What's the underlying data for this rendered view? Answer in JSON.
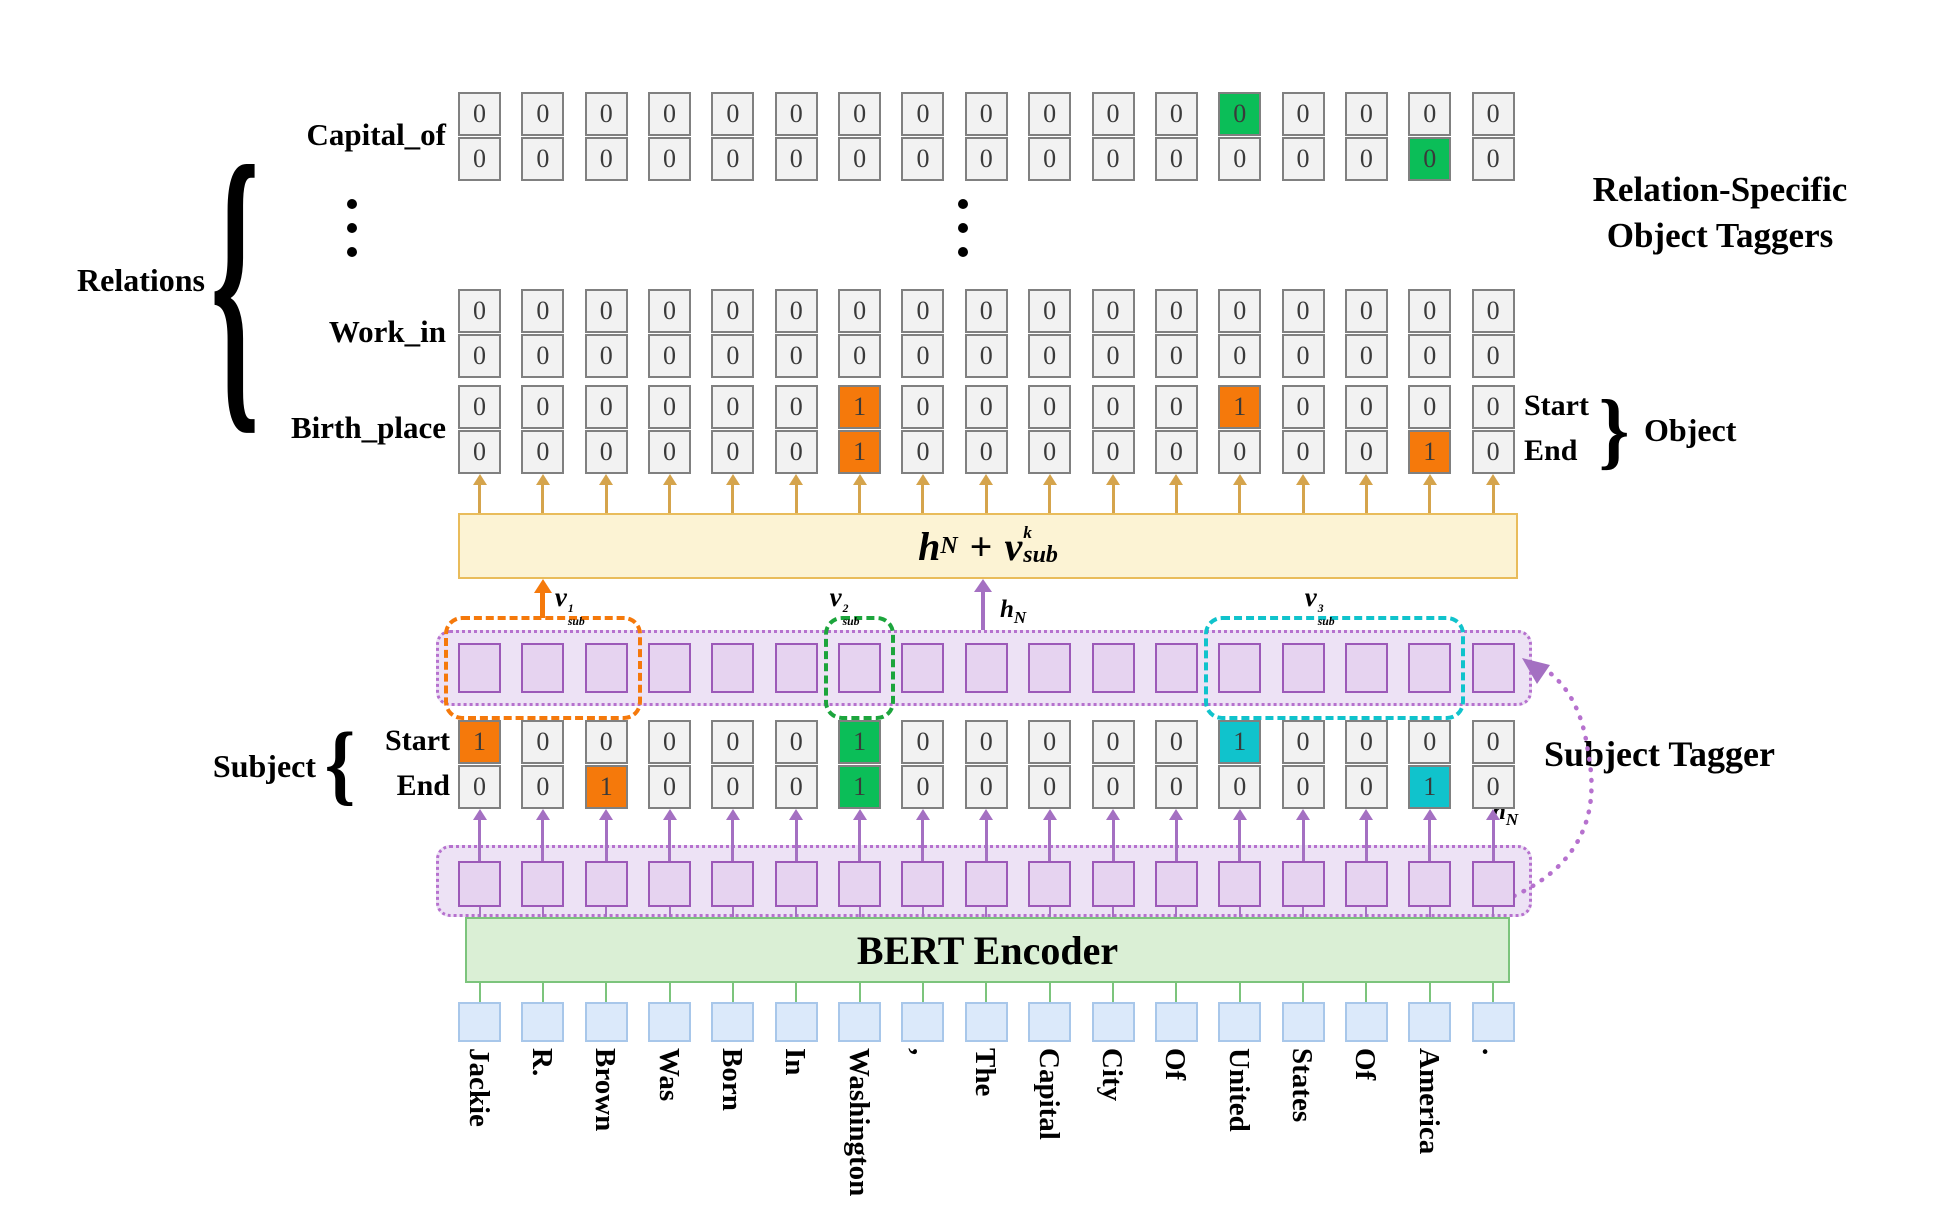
{
  "colors": {
    "orange": "#F5790B",
    "green": "#0BBE58",
    "cyan": "#10C3CC",
    "gold": "#D5A44C",
    "purple": "#A470C2",
    "purple_dark": "#9C59B8",
    "container_border": "#B671CE",
    "green_dash": "#1CA53C",
    "yellow_fill": "#FCF3D4",
    "yellow_border": "#E9BC5B",
    "bert_fill": "#DAEFD5",
    "bert_border": "#7CC47C",
    "token_fill": "#DBE9FA",
    "token_border": "#A8C7EA",
    "cell_fill": "#F2F2F2",
    "cell_border": "#808080"
  },
  "labels": {
    "relations": "Relations",
    "title_line1": "Relation-Specific",
    "title_line2": "Object Taggers",
    "subject_tagger": "Subject Tagger",
    "subject": "Subject",
    "start": "Start",
    "end": "End",
    "object": "Object",
    "bert": "BERT Encoder",
    "brace_open": "{",
    "brace_close": "}"
  },
  "formula": {
    "lhs_base": "h",
    "lhs_sub": "N",
    "op": "+",
    "rhs_base": "v",
    "rhs_sup": "k",
    "rhs_sub": "sub"
  },
  "hn": {
    "base": "h",
    "sub": "N"
  },
  "tokens": [
    "Jackie",
    "R.",
    "Brown",
    "Was",
    "Born",
    "In",
    "Washington",
    ",",
    "The",
    "Capital",
    "City",
    "Of",
    "United",
    "States",
    "Of",
    "America",
    "."
  ],
  "relation_rows": [
    {
      "label": "Capital_of",
      "start": [
        "0",
        "0",
        "0",
        "0",
        "0",
        "0",
        "0",
        "0",
        "0",
        "0",
        "0",
        "0",
        "0",
        "0",
        "0",
        "0",
        "0"
      ],
      "end": [
        "0",
        "0",
        "0",
        "0",
        "0",
        "0",
        "0",
        "0",
        "0",
        "0",
        "0",
        "0",
        "0",
        "0",
        "0",
        "0",
        "0"
      ],
      "start_hl": {
        "12": "green"
      },
      "end_hl": {
        "15": "green"
      }
    },
    {
      "label": "Work_in",
      "start": [
        "0",
        "0",
        "0",
        "0",
        "0",
        "0",
        "0",
        "0",
        "0",
        "0",
        "0",
        "0",
        "0",
        "0",
        "0",
        "0",
        "0"
      ],
      "end": [
        "0",
        "0",
        "0",
        "0",
        "0",
        "0",
        "0",
        "0",
        "0",
        "0",
        "0",
        "0",
        "0",
        "0",
        "0",
        "0",
        "0"
      ],
      "start_hl": {},
      "end_hl": {}
    },
    {
      "label": "Birth_place",
      "start": [
        "0",
        "0",
        "0",
        "0",
        "0",
        "0",
        "1",
        "0",
        "0",
        "0",
        "0",
        "0",
        "1",
        "0",
        "0",
        "0",
        "0"
      ],
      "end": [
        "0",
        "0",
        "0",
        "0",
        "0",
        "0",
        "1",
        "0",
        "0",
        "0",
        "0",
        "0",
        "0",
        "0",
        "0",
        "1",
        "0"
      ],
      "start_hl": {
        "6": "orange",
        "12": "orange"
      },
      "end_hl": {
        "6": "orange",
        "15": "orange"
      }
    }
  ],
  "subject_row": {
    "start": [
      "1",
      "0",
      "0",
      "0",
      "0",
      "0",
      "1",
      "0",
      "0",
      "0",
      "0",
      "0",
      "1",
      "0",
      "0",
      "0",
      "0"
    ],
    "end": [
      "0",
      "0",
      "1",
      "0",
      "0",
      "0",
      "1",
      "0",
      "0",
      "0",
      "0",
      "0",
      "0",
      "0",
      "0",
      "1",
      "0"
    ],
    "start_hl": {
      "0": "orange",
      "6": "green",
      "12": "cyan"
    },
    "end_hl": {
      "2": "orange",
      "6": "green",
      "15": "cyan"
    }
  },
  "selections": [
    {
      "base": "v",
      "sup": "1",
      "sub": "sub",
      "color": "orange",
      "from": 0,
      "to": 2,
      "arrow": true
    },
    {
      "base": "v",
      "sup": "2",
      "sub": "sub",
      "color": "green_dash",
      "from": 6,
      "to": 6,
      "arrow": false
    },
    {
      "base": "v",
      "sup": "3",
      "sub": "sub",
      "color": "cyan",
      "from": 12,
      "to": 15,
      "arrow": false
    }
  ]
}
